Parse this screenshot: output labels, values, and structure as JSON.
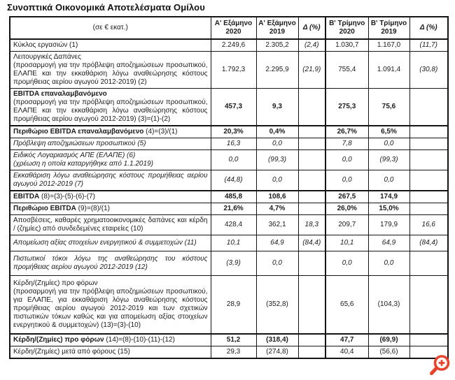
{
  "title": "Συνοπτικά Οικονομικά Αποτελέσματα Ομίλου",
  "icon": {
    "zoom_color": "#e8432b"
  },
  "table": {
    "unit_header": "(σε € εκατ.)",
    "columns": [
      "Α' Εξάμηνο 2020",
      "Α' Εξάμηνο 2019",
      "Δ (%)",
      "Β' Τρίμηνο 2020",
      "Β' Τρίμηνο 2019",
      "Δ (%)"
    ],
    "rows": [
      {
        "label": "Κύκλος εργασιών (1)",
        "values": [
          "2.249,6",
          "2.305,2",
          "(2,4)",
          "1.030,7",
          "1.167,0",
          "(11,7)"
        ]
      },
      {
        "label": "Λειτουργικές Δαπάνες",
        "sublabel": "(προσαρμογή για την πρόβλεψη αποζημιώσεων προσωπικού, ΕΛΑΠΕ και την εκκαθάριση λόγω αναθεώρησης κόστους προμήθειας αερίου αγωγού 2012-2019) (2)",
        "values": [
          "1.792,3",
          "2.295,9",
          "(21,9)",
          "755,4",
          "1.091,4",
          "(30,8)"
        ]
      },
      {
        "label_strong": "EBITDA επαναλαμβανόμενο",
        "sublabel": "(προσαρμογή για την πρόβλεψη αποζημιώσεων προσωπικού, ΕΛΑΠΕ και την εκκαθάριση λόγω αναθεώρησης κόστους προμήθειας αερίου αγωγού 2012-2019) (3)=(1)-(2)",
        "bold_values": true,
        "values": [
          "457,3",
          "9,3",
          "",
          "275,3",
          "75,6",
          ""
        ]
      },
      {
        "label_strong": "Περιθώριο EBITDA επαναλαμβανόμενο",
        "label": " (4)=(3)/(1)",
        "bold_values": true,
        "thick_top": true,
        "values": [
          "20,3%",
          "0,4%",
          "",
          "26,7%",
          "6,5%",
          ""
        ]
      },
      {
        "label": "Πρόβλεψη αποζημιώσεων προσωπικού (5)",
        "italic": true,
        "values": [
          "16,3",
          "0,0",
          "",
          "7,8",
          "0,0",
          ""
        ]
      },
      {
        "label": "Ειδικός Λογαριασμός ΑΠΕ (ΕΛΑΠΕ) (6)",
        "sublabel": "(χρέωση η οποία καταργήθηκε από 1.1.2019)",
        "italic": true,
        "values": [
          "0,0",
          "(99,3)",
          "",
          "0,0",
          "(99,3)",
          ""
        ]
      },
      {
        "label": "Εκκαθάριση λόγω αναθεώρησης κόστους προμήθειας αερίου αγωγού 2012-2019 (7)",
        "italic": true,
        "values": [
          "(44,8)",
          "0,0",
          "",
          "0,0",
          "0,0",
          ""
        ]
      },
      {
        "label_strong": "EBITDA",
        "label": " (8)=(3)-(5)-(6)-(7)",
        "bold_values": true,
        "thick_top": true,
        "values": [
          "485,8",
          "108,6",
          "",
          "267,5",
          "174,9",
          ""
        ]
      },
      {
        "label_strong": "Περιθώριο EBITDA",
        "label": " (9)=(8)/(1)",
        "bold_values": true,
        "values": [
          "21,6%",
          "4,7%",
          "",
          "26,0%",
          "15,0%",
          ""
        ]
      },
      {
        "label": "Αποσβέσεις, καθαρές χρηματοοικονομικές δαπάνες και κέρδη / (ζημίες) από συνδεδεμένες εταιρείες (10)",
        "values": [
          "428,4",
          "362,1",
          "18,3",
          "209,7",
          "179,9",
          "16,6"
        ]
      },
      {
        "label": "Απομείωση αξίας στοιχείων ενεργητικού & συμμετοχών (11)",
        "italic": true,
        "tall_pad": true,
        "values": [
          "10,1",
          "64,9",
          "(84,4)",
          "10,1",
          "64,9",
          "(84,4)"
        ]
      },
      {
        "label": "Πιστωτικοί τόκοι λόγω της αναθεώρησης του κόστους προμήθειας αερίου αγωγού 2012-2019 (12)",
        "italic": true,
        "tall_pad": true,
        "values": [
          "(3,9)",
          "0,0",
          "",
          "0,0",
          "0,0",
          ""
        ]
      },
      {
        "label": "Κέρδη/(Ζημίες) προ φόρων",
        "sublabel": "(προσαρμογή για την πρόβλεψη αποζημιώσεων προσωπικού, για ΕΛΑΠΕ, για εκκαθάριση λόγω αναθεώρησης κόστους προμήθειας αερίου αγωγού 2012-2019 και των σχετικών πιστωτικών τόκων καθώς και για απομείωση αξίας στοιχείων ενεργητικού & συμμετοχών) (13)=(3)-(10)",
        "tall_pad": true,
        "values": [
          "28,9",
          "(352,8)",
          "",
          "65,6",
          "(104,3)",
          ""
        ]
      },
      {
        "label_strong": "Κέρδη/(Ζημίες) προ φόρων",
        "label": " (14)=(8)-(10)-(11)-(12)",
        "bold_values": true,
        "thick_top": true,
        "values": [
          "51,2",
          "(318,4)",
          "",
          "47,7",
          "(69,9)",
          ""
        ]
      },
      {
        "label": "Κέρδη/(Ζημίες) μετά από φόρους (15)",
        "values": [
          "29,3",
          "(274,8)",
          "",
          "40,4",
          "(56,6)",
          ""
        ]
      }
    ]
  }
}
